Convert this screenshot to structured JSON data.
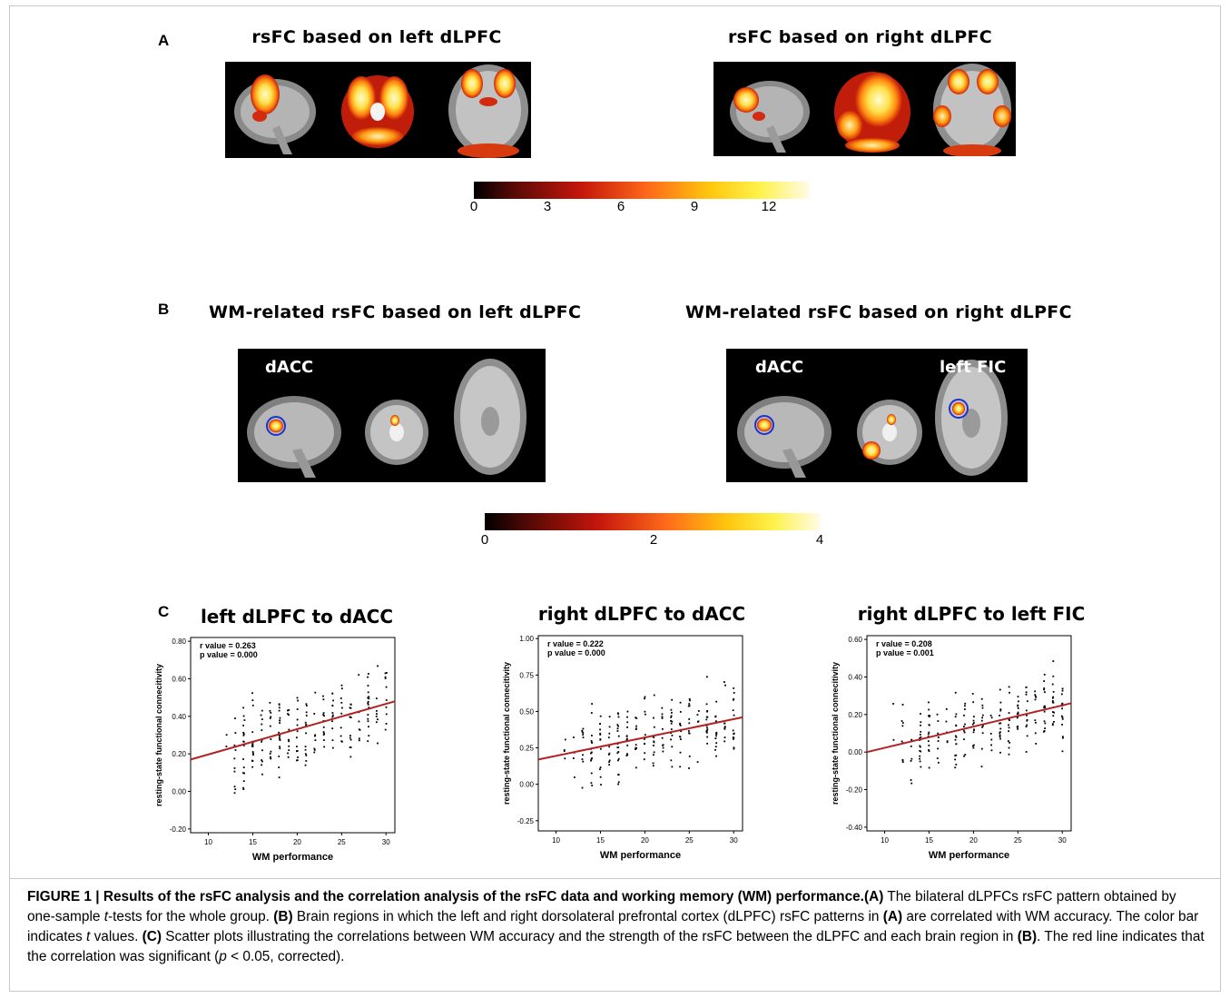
{
  "panelA": {
    "letter": "A",
    "left_title": "rsFC based on left dLPFC",
    "right_title": "rsFC based on right dLPFC",
    "colorbar_ticks": [
      "0",
      "3",
      "6",
      "9",
      "12"
    ]
  },
  "panelB": {
    "letter": "B",
    "left_title": "WM-related rsFC based on left dLPFC",
    "right_title": "WM-related rsFC based on right dLPFC",
    "left_region": "dACC",
    "right_region_1": "dACC",
    "right_region_2": "left FIC",
    "colorbar_ticks": [
      "0",
      "2",
      "4"
    ]
  },
  "panelC": {
    "letter": "C"
  },
  "colors": {
    "regression_line": "#b22222",
    "outline": "#2030d0"
  },
  "chart_data": [
    {
      "type": "scatter",
      "title": "left dLPFC to dACC",
      "xlabel": "WM performance",
      "ylabel": "resting-state functional connecitivity",
      "xlim": [
        8,
        31
      ],
      "ylim": [
        -0.22,
        0.82
      ],
      "xticks": [
        "10",
        "15",
        "20",
        "25",
        "30"
      ],
      "yticks": [
        "-0.20",
        "0.00",
        "0.20",
        "0.40",
        "0.60",
        "0.80"
      ],
      "ytick_values": [
        -0.2,
        0,
        0.2,
        0.4,
        0.6,
        0.8
      ],
      "stats": [
        "r value = 0.263",
        "p value = 0.000"
      ],
      "regression": {
        "x": [
          8,
          31
        ],
        "y": [
          0.17,
          0.48
        ]
      }
    },
    {
      "type": "scatter",
      "title": "right dLPFC to dACC",
      "xlabel": "WM performance",
      "ylabel": "resting-state functional connecitivity",
      "xlim": [
        8,
        31
      ],
      "ylim": [
        -0.32,
        1.02
      ],
      "xticks": [
        "10",
        "15",
        "20",
        "25",
        "30"
      ],
      "yticks": [
        "-0.25",
        "0.00",
        "0.25",
        "0.50",
        "0.75",
        "1.00"
      ],
      "ytick_values": [
        -0.25,
        0,
        0.25,
        0.5,
        0.75,
        1.0
      ],
      "stats": [
        "r value = 0.222",
        "p value = 0.000"
      ],
      "regression": {
        "x": [
          8,
          31
        ],
        "y": [
          0.17,
          0.46
        ]
      }
    },
    {
      "type": "scatter",
      "title": "right dLPFC to left FIC",
      "xlabel": "WM performance",
      "ylabel": "resting-state functional connecitivity",
      "xlim": [
        8,
        31
      ],
      "ylim": [
        -0.42,
        0.62
      ],
      "xticks": [
        "10",
        "15",
        "20",
        "25",
        "30"
      ],
      "yticks": [
        "-0.40",
        "-0.20",
        "0.00",
        "0.20",
        "0.40",
        "0.60"
      ],
      "ytick_values": [
        -0.4,
        -0.2,
        0,
        0.2,
        0.4,
        0.6
      ],
      "stats": [
        "r value = 0.208",
        "p value = 0.001"
      ],
      "regression": {
        "x": [
          8,
          31
        ],
        "y": [
          0.0,
          0.26
        ]
      }
    }
  ],
  "caption": {
    "label": "FIGURE 1 | Results of the rsFC analysis and the correlation analysis of the rsFC data and working memory (WM) performance.",
    "refA": "(A)",
    "textA_1": " The bilateral dLPFCs rsFC pattern obtained by one-sample ",
    "t1": "t",
    "textA_2": "-tests for the whole group. ",
    "refB": "(B)",
    "textB_1": " Brain regions in which the left and right dorsolateral prefrontal cortex (dLPFC) rsFC patterns in ",
    "refA2": "(A)",
    "textB_2": " are correlated with WM accuracy. The color bar indicates ",
    "t2": "t",
    "textB_3": " values. ",
    "refC": "(C)",
    "textC_1": " Scatter plots illustrating the correlations between WM accuracy and the strength of the rsFC between the dLPFC and each brain region in ",
    "refB2": "(B)",
    "textC_2": ". The red line indicates that the correlation was significant (",
    "p": "p",
    "textC_3": " < 0.05, corrected)."
  }
}
